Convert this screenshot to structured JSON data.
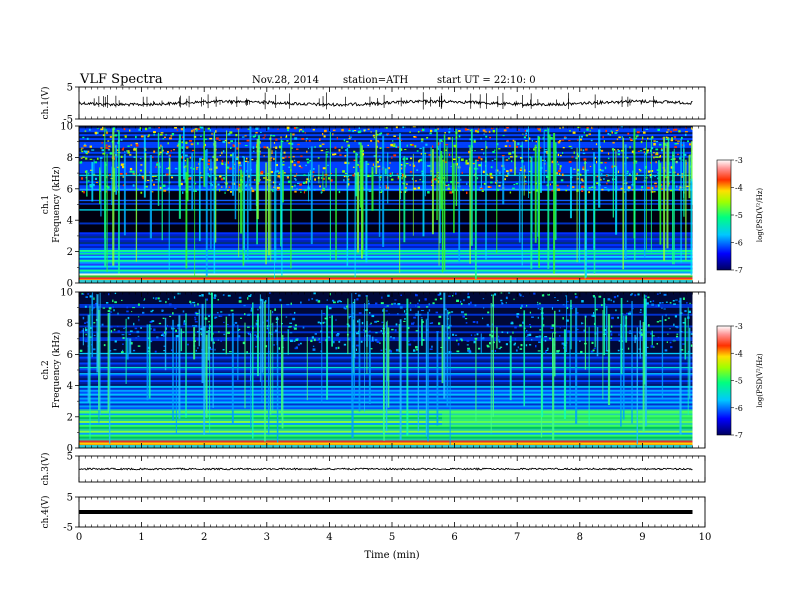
{
  "header": {
    "title": "VLF Spectra",
    "date": "Nov.28, 2014",
    "station": "station=ATH",
    "start_ut": "start  UT =   22:10: 0"
  },
  "chart_data": [
    {
      "type": "line",
      "name": "ch1-waveform",
      "ylabel": "ch.1(V)",
      "ylim": [
        -5,
        5
      ],
      "y_ticks": [
        "5",
        "-5"
      ],
      "level": 0.0
    },
    {
      "type": "heatmap",
      "name": "ch1-spectrogram",
      "ylabel_line1": "ch.1",
      "ylabel_line2": "Frequency  (kHz)",
      "ylim": [
        0,
        10
      ],
      "y_ticks": [
        "0",
        "2",
        "4",
        "6",
        "8",
        "10"
      ],
      "colorbar": {
        "label": "log(PSD(V²/Hz)",
        "range": [
          -7,
          -3
        ],
        "ticks": [
          "-3",
          "-4",
          "-5",
          "-6",
          "-7"
        ]
      },
      "band_colors_low": [
        "#ff6060",
        "#ffd700",
        "#ff3030",
        "#40d040",
        "#30ff80"
      ],
      "band_colors_mid": [
        "#00c8ff",
        "#40a0ff",
        "#00e0d0",
        "#1060ff"
      ],
      "band_colors_high": [
        "#000040",
        "#001070",
        "#00103a",
        "#0a0a40"
      ]
    },
    {
      "type": "heatmap",
      "name": "ch2-spectrogram",
      "ylabel_line1": "ch.2",
      "ylabel_line2": "Frequency  (kHz)",
      "ylim": [
        0,
        10
      ],
      "y_ticks": [
        "0",
        "2",
        "4",
        "6",
        "8",
        "10"
      ],
      "colorbar": {
        "label": "log(PSD(V²/Hz)",
        "range": [
          -7,
          -3
        ],
        "ticks": [
          "-3",
          "-4",
          "-5",
          "-6",
          "-7"
        ]
      }
    },
    {
      "type": "line",
      "name": "ch3-waveform",
      "ylabel": "ch.3(V)",
      "ylim": [
        -5,
        5
      ],
      "y_ticks": [
        "5"
      ],
      "level": 0.0
    },
    {
      "type": "line",
      "name": "ch4-waveform",
      "ylabel": "ch.4(V)",
      "ylim": [
        -5,
        5
      ],
      "y_ticks": [
        "5",
        "-5"
      ],
      "level": 0.0
    }
  ],
  "x_axis": {
    "label": "Time  (min)",
    "xlim": [
      0,
      10
    ],
    "ticks": [
      "0",
      "1",
      "2",
      "3",
      "4",
      "5",
      "6",
      "7",
      "8",
      "9",
      "10"
    ],
    "data_end": 9.8
  }
}
